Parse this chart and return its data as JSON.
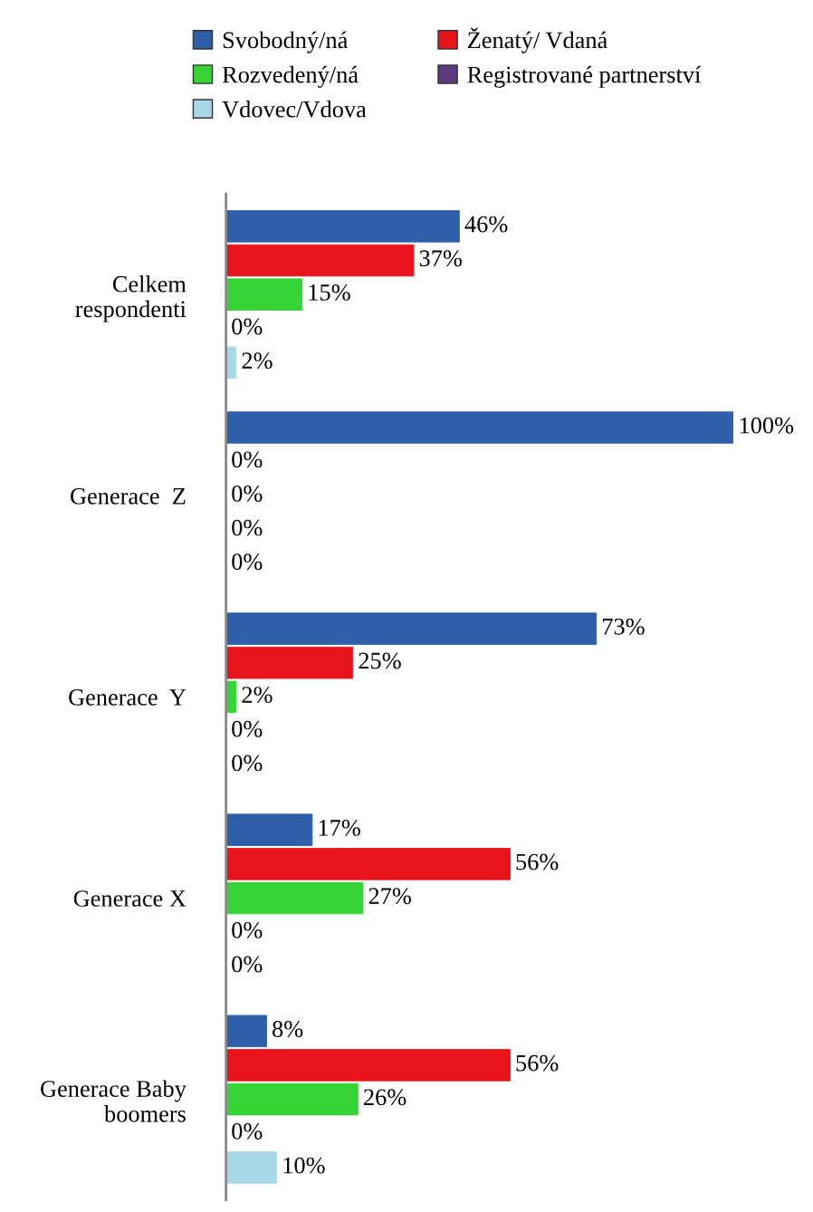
{
  "chart_data": {
    "type": "bar",
    "orientation": "horizontal",
    "categories": [
      "Celkem\nrespondenti",
      "Generace  Z",
      "Generace  Y",
      "Generace X",
      "Generace Baby\nboomers"
    ],
    "series": [
      {
        "name": "Svobodný/ná",
        "color": "#2e5fa8",
        "values": [
          46,
          100,
          73,
          17,
          8
        ],
        "value_labels": [
          "46%",
          "100%",
          "73%",
          "17%",
          "8%"
        ]
      },
      {
        "name": "Ženatý/ Vdaná",
        "color": "#e8141b",
        "values": [
          37,
          0,
          25,
          56,
          56
        ],
        "value_labels": [
          "37%",
          "0%",
          "25%",
          "56%",
          "56%"
        ]
      },
      {
        "name": "Rozvedený/ná",
        "color": "#35d335",
        "values": [
          15,
          0,
          2,
          27,
          26
        ],
        "value_labels": [
          "15%",
          "0%",
          "2%",
          "27%",
          "26%"
        ]
      },
      {
        "name": "Registrované partnerství",
        "color": "#5a3a7a",
        "values": [
          0,
          0,
          0,
          0,
          0
        ],
        "value_labels": [
          "0%",
          "0%",
          "0%",
          "0%",
          "0%"
        ]
      },
      {
        "name": "Vdovec/Vdova",
        "color": "#a8d8e8",
        "values": [
          2,
          0,
          0,
          0,
          10
        ],
        "value_labels": [
          "2%",
          "0%",
          "0%",
          "0%",
          "10%"
        ]
      }
    ],
    "legend": "top",
    "grid": false,
    "tick_labels": "y"
  }
}
